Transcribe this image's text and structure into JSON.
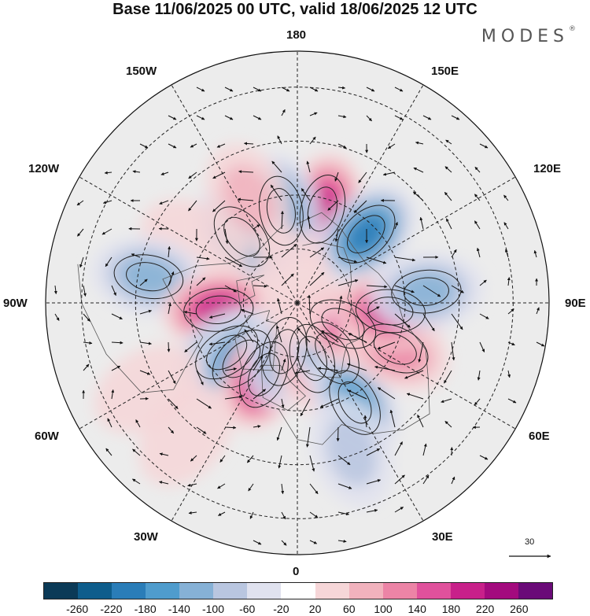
{
  "title": "Base 11/06/2025 00 UTC, valid 18/06/2025 12 UTC",
  "brand": "MODES",
  "brand_mark": "®",
  "longitude_labels": {
    "top": "180",
    "top_left": "150W",
    "top_right": "150E",
    "upper_left": "120W",
    "upper_right": "120E",
    "left": "90W",
    "right": "90E",
    "lower_left": "60W",
    "lower_right": "60E",
    "bottom_left": "30W",
    "bottom_right": "30E",
    "bottom": "0"
  },
  "wind_reference": {
    "value": "30"
  },
  "colorbar": {
    "colors": [
      "#0b3a57",
      "#0e5d8c",
      "#2a7db8",
      "#4f9ccd",
      "#86b1d6",
      "#b9c6e0",
      "#e0e2ef",
      "#ffffff",
      "#f6d6d8",
      "#f1b2bd",
      "#ec84a6",
      "#e0519c",
      "#c8208a",
      "#a30a7e",
      "#6a0a78"
    ],
    "labels": [
      "-260",
      "-220",
      "-180",
      "-140",
      "-100",
      "-60",
      "-20",
      "20",
      "60",
      "100",
      "140",
      "180",
      "220",
      "260"
    ]
  },
  "anomaly_centers": [
    {
      "lon": 165,
      "colat": 27,
      "value": 180
    },
    {
      "lon": 135,
      "colat": 27,
      "value": -180
    },
    {
      "lon": -170,
      "colat": 26,
      "value": -140
    },
    {
      "lon": -140,
      "colat": 24,
      "value": -160
    },
    {
      "lon": -155,
      "colat": 32,
      "value": 60
    },
    {
      "lon": -120,
      "colat": 33,
      "value": 40
    },
    {
      "lon": -100,
      "colat": 42,
      "value": -100
    },
    {
      "lon": -85,
      "colat": 22,
      "value": 180
    },
    {
      "lon": -55,
      "colat": 24,
      "value": -140
    },
    {
      "lon": -45,
      "colat": 22,
      "value": -180
    },
    {
      "lon": -25,
      "colat": 22,
      "value": 220
    },
    {
      "lon": -60,
      "colat": 48,
      "value": 40
    },
    {
      "lon": -40,
      "colat": 48,
      "value": 40
    },
    {
      "lon": -15,
      "colat": 14,
      "value": -100
    },
    {
      "lon": 15,
      "colat": 16,
      "value": 120
    },
    {
      "lon": 35,
      "colat": 17,
      "value": -140
    },
    {
      "lon": 30,
      "colat": 32,
      "value": -140
    },
    {
      "lon": 65,
      "colat": 14,
      "value": 140
    },
    {
      "lon": 65,
      "colat": 30,
      "value": 120
    },
    {
      "lon": 85,
      "colat": 26,
      "value": 180
    },
    {
      "lon": 95,
      "colat": 36,
      "value": -100
    },
    {
      "lon": 20,
      "colat": 44,
      "value": -60
    },
    {
      "lon": -170,
      "colat": 5,
      "value": 40
    }
  ]
}
